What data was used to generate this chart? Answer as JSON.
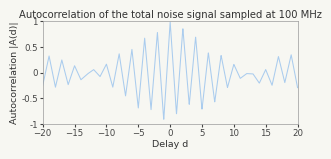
{
  "title": "Autocorrelation of the total noise signal sampled at 100 MHz",
  "xlabel": "Delay d",
  "ylabel": "Autocorrelation |A(d)|",
  "xlim": [
    -20,
    20
  ],
  "ylim": [
    -1,
    1
  ],
  "xticks": [
    -20,
    -15,
    -10,
    -5,
    0,
    5,
    10,
    15,
    20
  ],
  "yticks": [
    -1,
    -0.5,
    0,
    0.5,
    1
  ],
  "line_color": "#aaccee",
  "bg_color": "#f7f7f2",
  "title_fontsize": 7.2,
  "label_fontsize": 6.8,
  "tick_fontsize": 6.2
}
